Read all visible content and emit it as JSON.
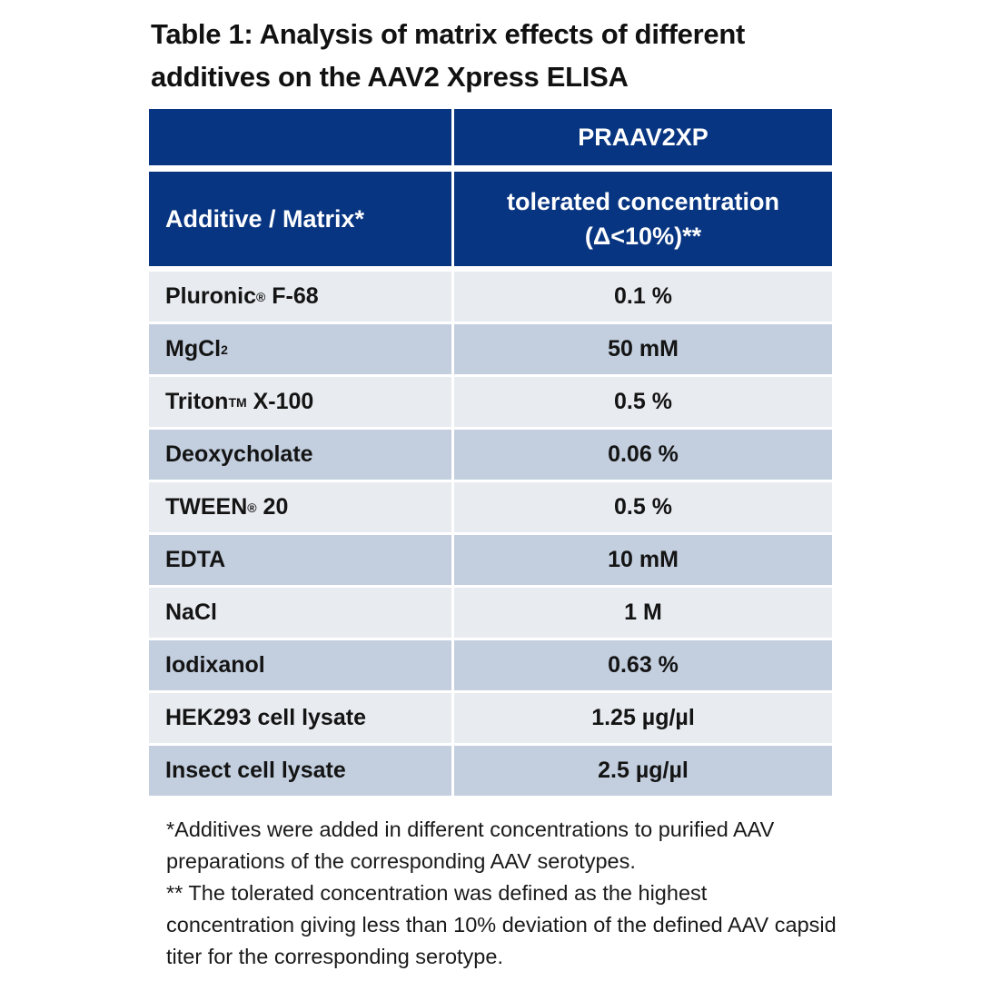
{
  "title": {
    "line1": "Table 1: Analysis of matrix effects of different",
    "line2": "additives on the AAV2 Xpress ELISA"
  },
  "colors": {
    "header_bg": "#083581",
    "header_text": "#ffffff",
    "row_light": "#e8ebf0",
    "row_dark": "#c3cfdf"
  },
  "table": {
    "header_top": {
      "col1": "",
      "col2": "PRAAV2XP"
    },
    "header_sub": {
      "col1": "Additive / Matrix*",
      "col2_line1": "tolerated concentration",
      "col2_line2": "(Δ<10%)**"
    },
    "rows": [
      {
        "name": "Pluronic",
        "sup": "®",
        "sub": "",
        "suffix": " F-68",
        "value": "0.1 %"
      },
      {
        "name": "MgCl",
        "sup": "",
        "sub": "2",
        "suffix": "",
        "value": "50 mM"
      },
      {
        "name": "Triton",
        "sup": "TM",
        "sub": "",
        "suffix": " X-100",
        "value": "0.5 %"
      },
      {
        "name": "Deoxycholate",
        "sup": "",
        "sub": "",
        "suffix": "",
        "value": "0.06 %"
      },
      {
        "name": "TWEEN",
        "sup": "®",
        "sub": "",
        "suffix": " 20",
        "value": "0.5 %"
      },
      {
        "name": "EDTA",
        "sup": "",
        "sub": "",
        "suffix": "",
        "value": "10 mM"
      },
      {
        "name": "NaCl",
        "sup": "",
        "sub": "",
        "suffix": "",
        "value": "1 M"
      },
      {
        "name": "Iodixanol",
        "sup": "",
        "sub": "",
        "suffix": "",
        "value": "0.63 %"
      },
      {
        "name": "HEK293 cell lysate",
        "sup": "",
        "sub": "",
        "suffix": "",
        "value": "1.25 µg/µl"
      },
      {
        "name": "Insect cell lysate",
        "sup": "",
        "sub": "",
        "suffix": "",
        "value": "2.5 µg/µl"
      }
    ]
  },
  "footnotes": {
    "note1": "*Additives were added in different concentrations to purified AAV preparations of the corresponding AAV serotypes.",
    "note2": "** The tolerated concentration was defined as the highest concentration giving less than 10% deviation of the defined AAV capsid titer for the corresponding serotype."
  }
}
